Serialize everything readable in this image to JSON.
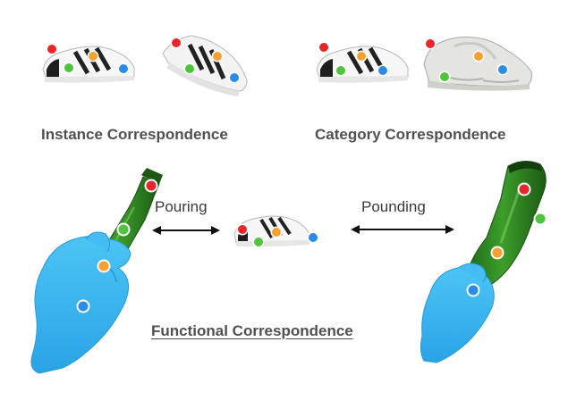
{
  "captions": {
    "instance": "Instance Correspondence",
    "category": "Category Correspondence",
    "functional": "Functional Correspondence"
  },
  "actions": {
    "pouring": "Pouring",
    "pounding": "Pounding"
  },
  "colors": {
    "keypoint_red": "#e8262a",
    "keypoint_orange": "#f5a131",
    "keypoint_green": "#4ec43c",
    "keypoint_blue": "#2a8be8",
    "bottle_green": "#2f8a22",
    "hand_blue": "#38b6f0",
    "caption_gray": "#505050"
  }
}
